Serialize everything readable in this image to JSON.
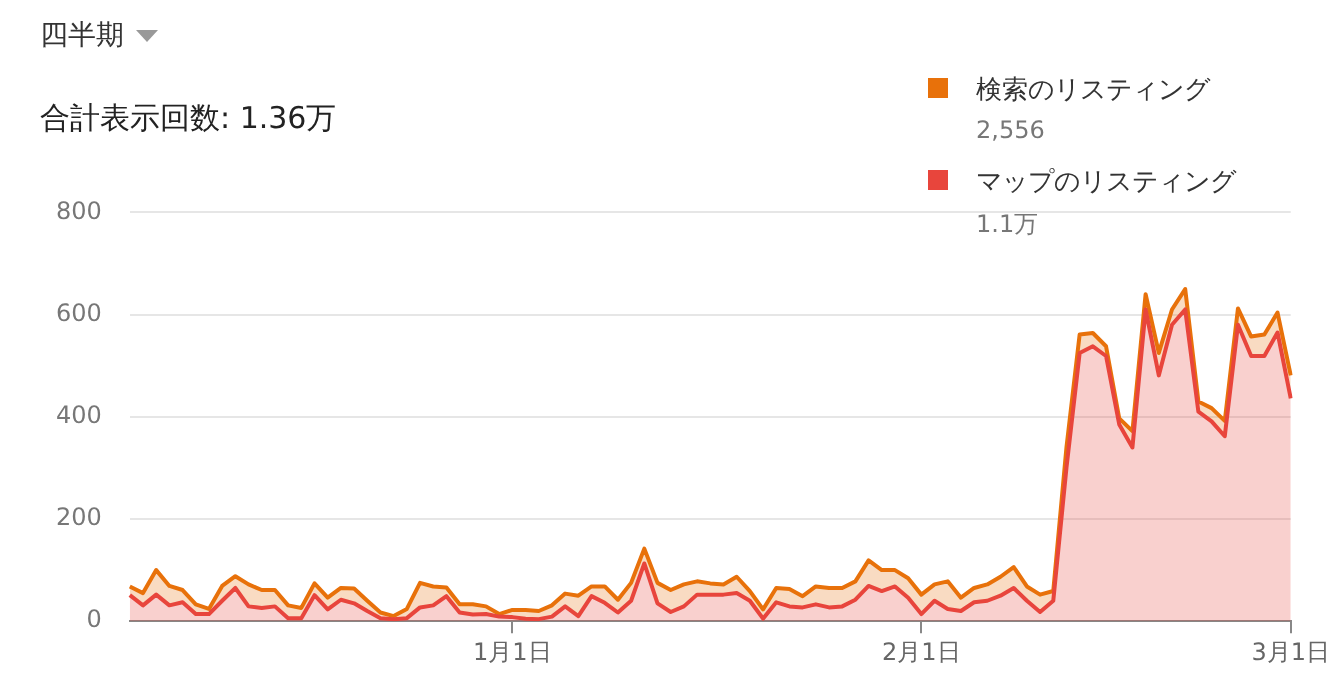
{
  "chart_data": {
    "type": "area",
    "title": "四半期",
    "subtitle": "合計表示回数: 1.36万",
    "categories": [
      null,
      null,
      null,
      null,
      null,
      null,
      null,
      null,
      null,
      null,
      null,
      null,
      null,
      null,
      null,
      null,
      null,
      null,
      null,
      null,
      null,
      null,
      null,
      null,
      null,
      null,
      null,
      null,
      null,
      "1月1日",
      null,
      null,
      null,
      null,
      null,
      null,
      null,
      null,
      null,
      null,
      null,
      null,
      null,
      null,
      null,
      null,
      null,
      null,
      null,
      null,
      null,
      null,
      null,
      null,
      null,
      null,
      null,
      null,
      null,
      null,
      "2月1日",
      null,
      null,
      null,
      null,
      null,
      null,
      null,
      null,
      null,
      null,
      null,
      null,
      null,
      null,
      null,
      null,
      null,
      null,
      null,
      null,
      null,
      null,
      null,
      null,
      null,
      null,
      null,
      "3月1日"
    ],
    "series": [
      {
        "name": "マップのリスティング",
        "color": "#e8453c",
        "values": [
          51,
          31,
          52,
          31,
          37,
          14,
          14,
          40,
          65,
          29,
          26,
          29,
          6,
          6,
          51,
          23,
          42,
          35,
          20,
          6,
          4,
          6,
          27,
          31,
          49,
          17,
          13,
          14,
          9,
          8,
          5,
          4,
          9,
          29,
          10,
          49,
          36,
          17,
          40,
          113,
          35,
          18,
          29,
          52,
          52,
          52,
          55,
          40,
          5,
          37,
          29,
          27,
          33,
          27,
          29,
          42,
          69,
          59,
          68,
          46,
          14,
          40,
          24,
          20,
          37,
          40,
          50,
          65,
          40,
          18,
          40,
          300,
          525,
          538,
          519,
          385,
          340,
          610,
          481,
          580,
          610,
          410,
          391,
          362,
          580,
          519,
          519,
          565,
          436
        ]
      },
      {
        "name": "検索のリスティング",
        "color": "#e8710a",
        "values": [
          17,
          24,
          48,
          38,
          24,
          19,
          10,
          29,
          23,
          43,
          35,
          32,
          25,
          20,
          23,
          23,
          23,
          29,
          20,
          11,
          6,
          18,
          48,
          37,
          17,
          16,
          20,
          15,
          5,
          14,
          17,
          16,
          22,
          25,
          40,
          19,
          32,
          25,
          35,
          29,
          40,
          43,
          43,
          26,
          22,
          20,
          32,
          19,
          18,
          28,
          34,
          22,
          35,
          38,
          36,
          36,
          50,
          41,
          32,
          38,
          38,
          32,
          54,
          26,
          28,
          32,
          37,
          41,
          28,
          34,
          19,
          40,
          36,
          26,
          19,
          12,
          32,
          30,
          44,
          30,
          40,
          20,
          26,
          30,
          32,
          38,
          42,
          39,
          45
        ]
      }
    ],
    "stacked": true,
    "ylim": [
      0,
      800
    ],
    "yticks": [
      0,
      200,
      400,
      600,
      800
    ],
    "grid": "y",
    "legend": "top right",
    "annotations": [
      "2,556",
      "1.1万"
    ]
  }
}
